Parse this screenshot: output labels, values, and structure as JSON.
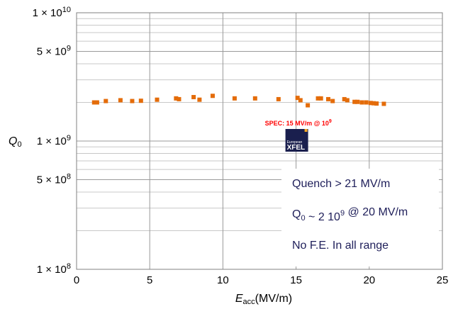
{
  "chart_data": {
    "type": "scatter",
    "title": "",
    "xlabel": {
      "main": "E",
      "sub": "acc",
      "unit": "(MV/m)"
    },
    "ylabel": {
      "main": "Q",
      "sub": "0"
    },
    "xlim": [
      0,
      25
    ],
    "ylim": [
      100000000,
      10000000000
    ],
    "yscale": "log",
    "grid": true,
    "x_ticks": [
      0,
      5,
      10,
      15,
      20,
      25
    ],
    "y_tick_labels": [
      {
        "value": 10000000000,
        "mantissa": "1 × 10",
        "exp": "10"
      },
      {
        "value": 5000000000,
        "mantissa": "5 × 10",
        "exp": "9"
      },
      {
        "value": 1000000000,
        "mantissa": "1 × 10",
        "exp": "9"
      },
      {
        "value": 500000000,
        "mantissa": "5 × 10",
        "exp": "8"
      },
      {
        "value": 100000000,
        "mantissa": "1 × 10",
        "exp": "8"
      }
    ],
    "series": [
      {
        "color": "#e46c0a",
        "marker": "square",
        "points": [
          [
            1.2,
            2000000000.0
          ],
          [
            1.4,
            2000000000.0
          ],
          [
            2.0,
            2050000000.0
          ],
          [
            3.0,
            2080000000.0
          ],
          [
            3.8,
            2050000000.0
          ],
          [
            4.4,
            2060000000.0
          ],
          [
            5.5,
            2100000000.0
          ],
          [
            6.8,
            2150000000.0
          ],
          [
            7.0,
            2120000000.0
          ],
          [
            8.0,
            2200000000.0
          ],
          [
            8.4,
            2100000000.0
          ],
          [
            9.3,
            2250000000.0
          ],
          [
            10.8,
            2150000000.0
          ],
          [
            12.2,
            2150000000.0
          ],
          [
            13.8,
            2120000000.0
          ],
          [
            15.1,
            2170000000.0
          ],
          [
            15.3,
            2080000000.0
          ],
          [
            15.8,
            1900000000.0
          ],
          [
            16.5,
            2150000000.0
          ],
          [
            16.7,
            2150000000.0
          ],
          [
            17.2,
            2120000000.0
          ],
          [
            17.5,
            2050000000.0
          ],
          [
            18.3,
            2120000000.0
          ],
          [
            18.5,
            2080000000.0
          ],
          [
            19.0,
            2020000000.0
          ],
          [
            19.2,
            2020000000.0
          ],
          [
            19.5,
            2000000000.0
          ],
          [
            19.8,
            2000000000.0
          ],
          [
            20.1,
            1980000000.0
          ],
          [
            20.3,
            1970000000.0
          ],
          [
            20.5,
            1960000000.0
          ],
          [
            21.0,
            1950000000.0
          ]
        ]
      }
    ],
    "annotations": {
      "spec": {
        "text": "SPEC: 15 MV/m @ 10",
        "exp": "9",
        "color": "#ff0000",
        "x": 15,
        "y": 1000000000
      },
      "logo": {
        "line1": "European",
        "line2": "XFEL"
      },
      "info_lines": [
        {
          "parts": [
            {
              "t": "Quench > 21 MV/m"
            }
          ]
        },
        {
          "parts": [
            {
              "t": "Q"
            },
            {
              "t": "0",
              "sub": true
            },
            {
              "t": " ~ 2 10"
            },
            {
              "t": "9",
              "sup": true
            },
            {
              "t": " @ 20 MV/m"
            }
          ]
        },
        {
          "parts": [
            {
              "t": "No F.E. In all range"
            }
          ]
        }
      ],
      "info_color": "#1f1f5a"
    }
  }
}
